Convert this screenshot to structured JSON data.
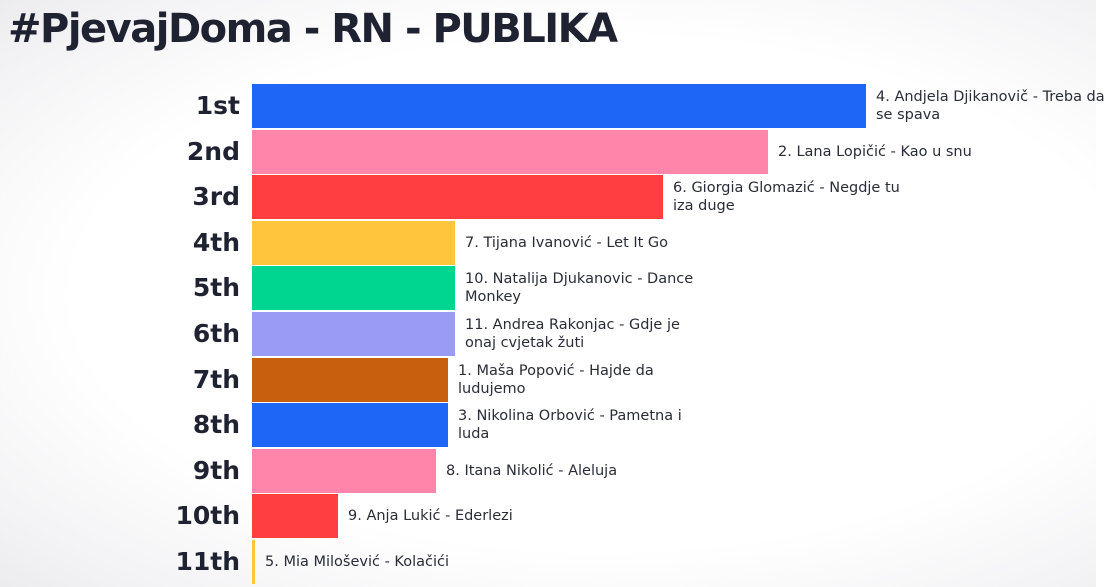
{
  "title": "#PjevajDoma - RN - PUBLIKA",
  "colors": {
    "blue": "#1e66f5",
    "pink": "#ff85ab",
    "red": "#ff3f3f",
    "yellow": "#ffc53d",
    "green": "#00d68f",
    "lavender": "#9a9bf4",
    "brown": "#c6600d",
    "text": "#1f2230"
  },
  "chart_data": {
    "type": "bar",
    "orientation": "horizontal",
    "title": "#PjevajDoma - RN - PUBLIKA",
    "xlim": [
      0,
      100
    ],
    "grid": false,
    "legend": "none",
    "categories": [
      "1st",
      "2nd",
      "3rd",
      "4th",
      "5th",
      "6th",
      "7th",
      "8th",
      "9th",
      "10th",
      "11th"
    ],
    "labels": [
      "4. Andjela Djikanovič - Treba da se spava",
      "2. Lana Lopičić - Kao u snu",
      "6. Giorgia Glomazić - Negdje tu iza duge",
      "7. Tijana Ivanović - Let It Go",
      "10. Natalija Djukanovic - Dance Monkey",
      "11. Andrea Rakonjac - Gdje je onaj cvjetak žuti",
      "1. Maša Popović - Hajde da ludujemo",
      "3. Nikolina Orbović  - Pametna i luda",
      "8. Itana Nikolić - Aleluja",
      "9. Anja Lukić - Ederlezi",
      "5. Mia Milošević - Kolačići"
    ],
    "values": [
      100,
      84,
      67,
      33,
      33,
      33,
      32,
      32,
      30,
      14,
      0.5
    ],
    "bar_colors": [
      "#1e66f5",
      "#ff85ab",
      "#ff3f3f",
      "#ffc53d",
      "#00d68f",
      "#9a9bf4",
      "#c6600d",
      "#1e66f5",
      "#ff85ab",
      "#ff3f3f",
      "#ffc53d"
    ]
  }
}
